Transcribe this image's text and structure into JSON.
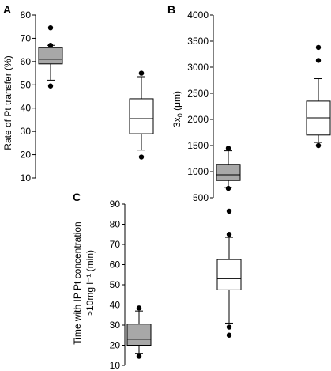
{
  "colors": {
    "filled_box": "#a8a8a8",
    "open_box": "#ffffff",
    "stroke": "#000000"
  },
  "chart_data": [
    {
      "type": "box",
      "panel": "A",
      "ylabel": "Rate of Pt transfer (%)",
      "ylim": [
        10,
        80
      ],
      "yticks": [
        10,
        20,
        30,
        40,
        50,
        60,
        70,
        80
      ],
      "boxes": [
        {
          "fill": "filled",
          "whisker_low": 52,
          "q1": 59,
          "median": 61,
          "q3": 66,
          "whisker_high": 67,
          "outliers": [
            49.5,
            74.5,
            67
          ]
        },
        {
          "fill": "open",
          "whisker_low": 22,
          "q1": 29,
          "median": 35.5,
          "q3": 44,
          "whisker_high": 53.5,
          "outliers": [
            19,
            55
          ]
        }
      ]
    },
    {
      "type": "box",
      "panel": "B",
      "ylabel": "3x0 (μm)",
      "ylim": [
        500,
        4000
      ],
      "yticks": [
        500,
        1000,
        1500,
        2000,
        2500,
        3000,
        3500,
        4000
      ],
      "boxes": [
        {
          "fill": "filled",
          "whisker_low": 700,
          "q1": 830,
          "median": 940,
          "q3": 1140,
          "whisker_high": 1400,
          "outliers": [
            680,
            1450
          ]
        },
        {
          "fill": "open",
          "whisker_low": 1560,
          "q1": 1700,
          "median": 2030,
          "q3": 2350,
          "whisker_high": 2780,
          "outliers": [
            1500,
            3130,
            3380
          ]
        }
      ]
    },
    {
      "type": "box",
      "panel": "C",
      "ylabel_line1": "Time with IP Pt concentration",
      "ylabel_line2": ">10mg l⁻¹ (min)",
      "ylim": [
        10,
        90
      ],
      "yticks": [
        10,
        20,
        30,
        40,
        50,
        60,
        70,
        80,
        90
      ],
      "boxes": [
        {
          "fill": "filled",
          "whisker_low": 16,
          "q1": 20,
          "median": 23,
          "q3": 30.5,
          "whisker_high": 37,
          "outliers": [
            14.5,
            38.5
          ]
        },
        {
          "fill": "open",
          "whisker_low": 31,
          "q1": 47.5,
          "median": 53,
          "q3": 62.5,
          "whisker_high": 73.5,
          "outliers": [
            25,
            29,
            75,
            86.5
          ]
        }
      ]
    }
  ]
}
